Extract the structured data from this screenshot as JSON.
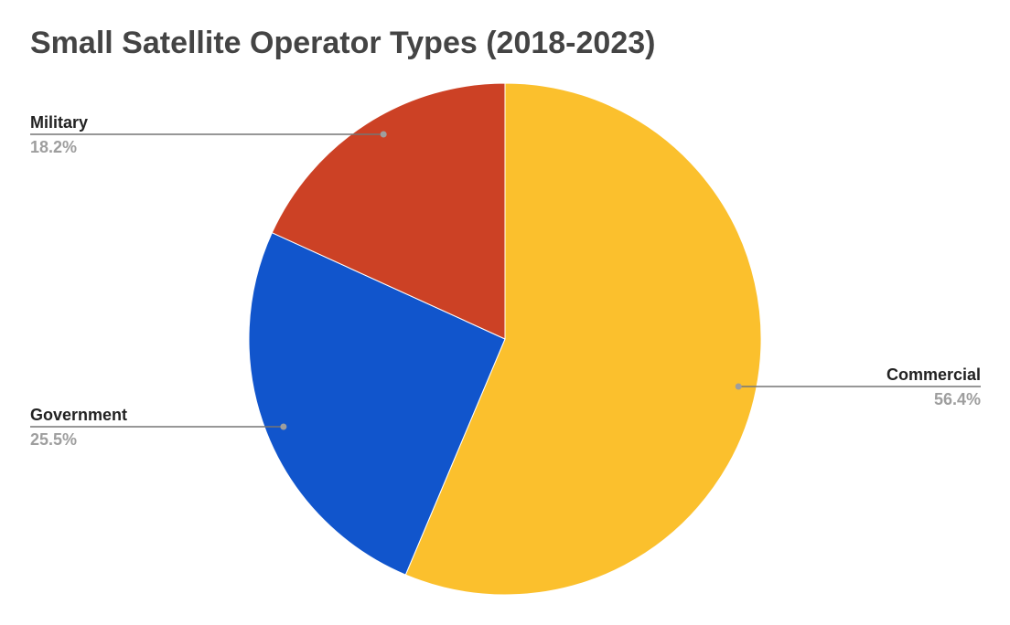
{
  "chart_data": {
    "type": "pie",
    "title": "Small Satellite Operator Types (2018-2023)",
    "slices": [
      {
        "label": "Commercial",
        "value": 56.4,
        "value_label": "56.4%",
        "color": "#fbc02d"
      },
      {
        "label": "Government",
        "value": 25.5,
        "value_label": "25.5%",
        "color": "#1155cc"
      },
      {
        "label": "Military",
        "value": 18.2,
        "value_label": "18.2%",
        "color": "#cc4125"
      }
    ],
    "legend": "none",
    "label_style": "leader-lines"
  }
}
